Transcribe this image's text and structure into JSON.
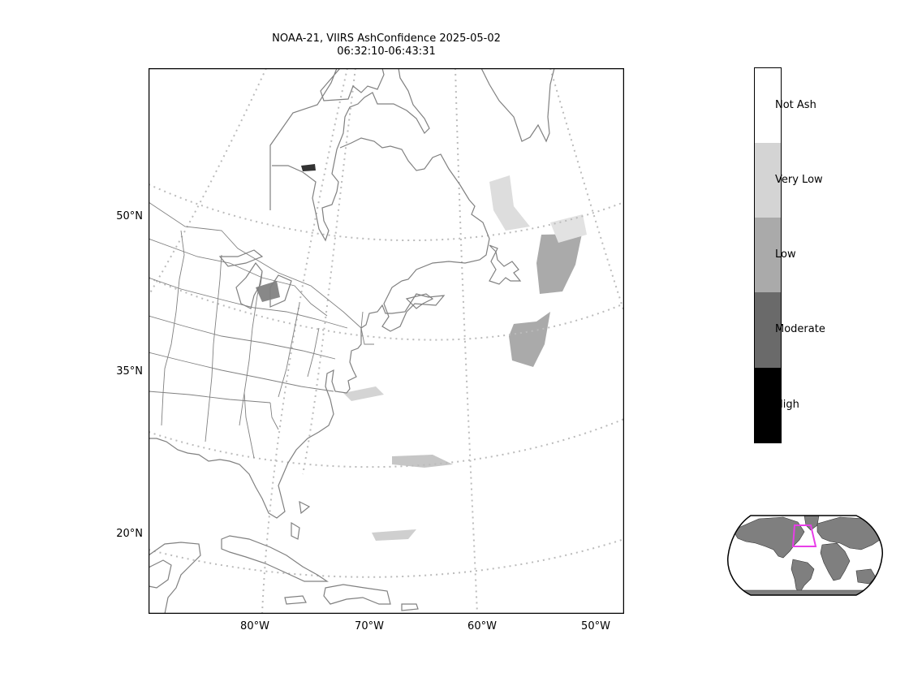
{
  "title": {
    "line1": "NOAA-21, VIIRS AshConfidence 2025-05-02",
    "line2": "06:32:10-06:43:31"
  },
  "map": {
    "lat_labels": [
      "50°N",
      "35°N",
      "20°N"
    ],
    "lon_labels": [
      "80°W",
      "70°W",
      "60°W",
      "50°W"
    ],
    "coastline_color": "#808080",
    "gridline_color": "#bbbbbb"
  },
  "legend": {
    "categories": [
      {
        "label": "Not Ash",
        "color": "#ffffff"
      },
      {
        "label": "Very Low",
        "color": "#d4d4d4"
      },
      {
        "label": "Low",
        "color": "#aaaaaa"
      },
      {
        "label": "Moderate",
        "color": "#6a6a6a"
      },
      {
        "label": "High",
        "color": "#000000"
      }
    ]
  },
  "inset": {
    "land_color": "#7f7f7f",
    "domain_outline_color": "#e83ee8"
  }
}
